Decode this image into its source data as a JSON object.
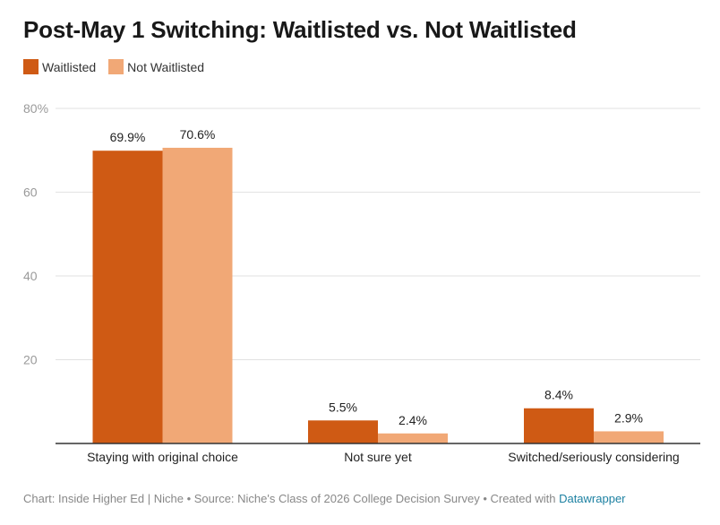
{
  "chart_data": {
    "type": "bar",
    "title": "Post-May 1 Switching: Waitlisted vs. Not Waitlisted",
    "categories": [
      "Staying with original choice",
      "Not sure yet",
      "Switched/seriously considering"
    ],
    "series": [
      {
        "name": "Waitlisted",
        "color": "#cf5a14",
        "values": [
          69.9,
          5.5,
          8.4
        ],
        "labels": [
          "69.9%",
          "5.5%",
          "8.4%"
        ]
      },
      {
        "name": "Not Waitlisted",
        "color": "#f1a876",
        "values": [
          70.6,
          2.4,
          2.9
        ],
        "labels": [
          "70.6%",
          "2.4%",
          "2.9%"
        ]
      }
    ],
    "ylim": [
      0,
      80
    ],
    "yticks": [
      20,
      40,
      60,
      80
    ],
    "ytick_labels": [
      "20",
      "40",
      "60",
      "80%"
    ],
    "grid": true,
    "legend_position": "top-left"
  },
  "footer": {
    "text": "Chart: Inside Higher Ed | Niche • Source: Niche's Class of 2026 College Decision Survey • Created with ",
    "link": "Datawrapper"
  }
}
